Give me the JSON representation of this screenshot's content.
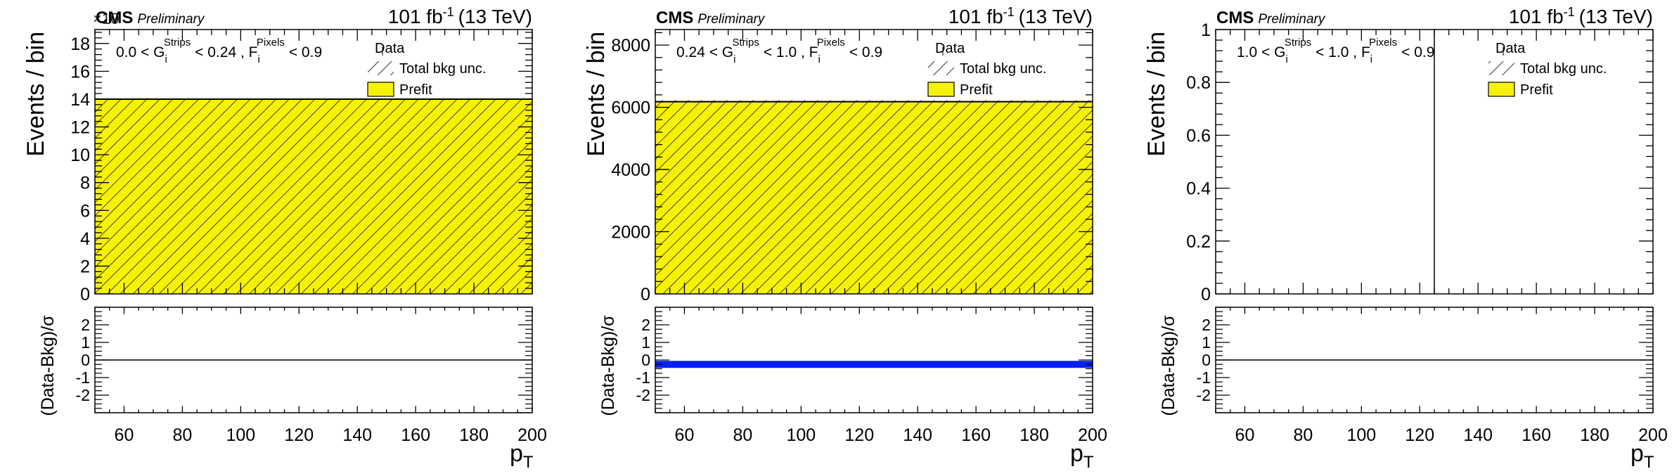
{
  "colors": {
    "prefit": "#f7f106",
    "prefit_stroke": "#000000",
    "hatch": "#000000",
    "pull_band": "#0020f0",
    "axis": "#000000"
  },
  "chart_data": [
    {
      "type": "bar",
      "header": {
        "experiment": "CMS",
        "status": "Preliminary",
        "lumi": "101 fb",
        "lumi_sup": "-1",
        "energy": "(13 TeV)"
      },
      "selection": {
        "g_lo": "0.0 < G",
        "g_sub": "i",
        "g_sup": "Strips",
        "g_hi": "< 0.24 , F",
        "f_sub": "i",
        "f_sup": "Pixels",
        "f_hi": "< 0.9"
      },
      "legend": {
        "placement": "top-right",
        "entries": [
          "Data",
          "Total bkg unc.",
          "Prefit"
        ]
      },
      "multiplier": "×10",
      "ylabel": "Events / bin",
      "xlabel": "p",
      "xlabel_sub": "T",
      "xlim": [
        50,
        200
      ],
      "ylim": [
        0,
        19
      ],
      "yticks_major": [
        0,
        2,
        4,
        6,
        8,
        10,
        12,
        14,
        16,
        18
      ],
      "yticks_minor_step": 0.4,
      "xticks_major": [
        60,
        80,
        100,
        120,
        140,
        160,
        180,
        200
      ],
      "xticks_minor_step": 5,
      "bins": [
        [
          50,
          200
        ]
      ],
      "prefit": [
        14.0
      ],
      "total_bkg_unc": [
        [
          14.0,
          14.0
        ]
      ],
      "ratio": {
        "ylabel": "(Data-Bkg)/σ",
        "ylim": [
          -3,
          3
        ],
        "yticks": [
          -2,
          -1,
          0,
          1,
          2
        ],
        "band": null,
        "zero_line": true
      }
    },
    {
      "type": "bar",
      "header": {
        "experiment": "CMS",
        "status": "Preliminary",
        "lumi": "101 fb",
        "lumi_sup": "-1",
        "energy": "(13 TeV)"
      },
      "selection": {
        "g_lo": "0.24 < G",
        "g_sub": "i",
        "g_sup": "Strips",
        "g_hi": "< 1.0 , F",
        "f_sub": "i",
        "f_sup": "Pixels",
        "f_hi": "< 0.9"
      },
      "legend": {
        "placement": "top-right",
        "entries": [
          "Data",
          "Total bkg unc.",
          "Prefit"
        ]
      },
      "multiplier": "",
      "ylabel": "Events / bin",
      "xlabel": "p",
      "xlabel_sub": "T",
      "xlim": [
        50,
        200
      ],
      "ylim": [
        0,
        8500
      ],
      "yticks_major": [
        0,
        2000,
        4000,
        6000,
        8000
      ],
      "yticks_minor_step": 400,
      "xticks_major": [
        60,
        80,
        100,
        120,
        140,
        160,
        180,
        200
      ],
      "xticks_minor_step": 5,
      "bins": [
        [
          50,
          200
        ]
      ],
      "prefit": [
        6180
      ],
      "total_bkg_unc": [
        [
          6130,
          6230
        ]
      ],
      "ratio": {
        "ylabel": "(Data-Bkg)/σ",
        "ylim": [
          -3,
          3
        ],
        "yticks": [
          -2,
          -1,
          0,
          1,
          2
        ],
        "band": [
          -0.45,
          -0.05
        ],
        "zero_line": false
      }
    },
    {
      "type": "bar",
      "header": {
        "experiment": "CMS",
        "status": "Preliminary",
        "lumi": "101 fb",
        "lumi_sup": "-1",
        "energy": "(13 TeV)"
      },
      "selection": {
        "g_lo": "1.0 < G",
        "g_sub": "i",
        "g_sup": "Strips",
        "g_hi": "< 1.0 , F",
        "f_sub": "i",
        "f_sup": "Pixels",
        "f_hi": "< 0.9"
      },
      "legend": {
        "placement": "top-right",
        "entries": [
          "Data",
          "Total bkg unc.",
          "Prefit"
        ]
      },
      "multiplier": "",
      "ylabel": "Events / bin",
      "xlabel": "p",
      "xlabel_sub": "T",
      "xlim": [
        50,
        200
      ],
      "ylim": [
        0,
        1
      ],
      "yticks_major": [
        0,
        0.2,
        0.4,
        0.6,
        0.8,
        1
      ],
      "yticks_major_labels": [
        "0",
        "0.2",
        "0.4",
        "0.6",
        "0.8",
        "1"
      ],
      "yticks_minor_step": 0.04,
      "xticks_major": [
        60,
        80,
        100,
        120,
        140,
        160,
        180,
        200
      ],
      "xticks_minor_step": 5,
      "bins": [
        [
          50,
          200
        ]
      ],
      "prefit": [
        0
      ],
      "total_bkg_unc": [],
      "vline_x": 125,
      "ratio": {
        "ylabel": "(Data-Bkg)/σ",
        "ylim": [
          -3,
          3
        ],
        "yticks": [
          -2,
          -1,
          0,
          1,
          2
        ],
        "band": null,
        "zero_line": true
      }
    }
  ]
}
